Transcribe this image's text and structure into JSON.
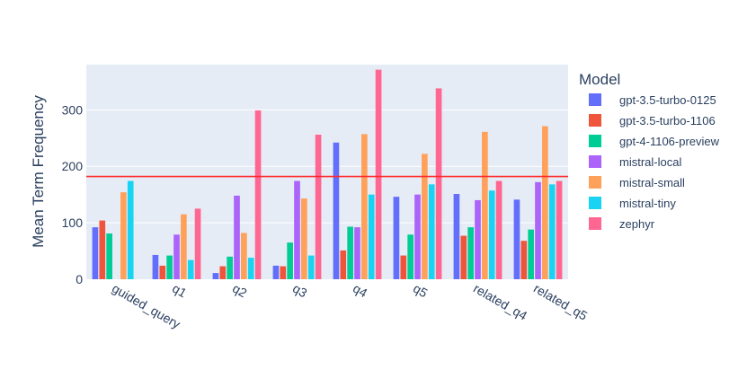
{
  "chart_data": {
    "type": "bar",
    "barmode": "group",
    "title": "",
    "xlabel": "",
    "ylabel": "Mean Term Frequency",
    "ylim": [
      0,
      380
    ],
    "y_ticks": [
      0,
      100,
      200,
      300
    ],
    "grid": true,
    "legend": {
      "title": "Model",
      "placement": "right"
    },
    "categories": [
      "guided_query",
      "q1",
      "q2",
      "q3",
      "q4",
      "q5",
      "related_q4",
      "related_q5"
    ],
    "series": [
      {
        "name": "gpt-3.5-turbo-0125",
        "color": "#636efa",
        "values": [
          92,
          43,
          11,
          24,
          242,
          146,
          151,
          141
        ]
      },
      {
        "name": "gpt-3.5-turbo-1106",
        "color": "#ef553b",
        "values": [
          104,
          24,
          23,
          23,
          51,
          42,
          77,
          68
        ]
      },
      {
        "name": "gpt-4-1106-preview",
        "color": "#00cc96",
        "values": [
          81,
          42,
          40,
          65,
          93,
          79,
          92,
          88
        ]
      },
      {
        "name": "mistral-local",
        "color": "#ab63fa",
        "values": [
          0,
          79,
          148,
          174,
          92,
          150,
          140,
          172
        ]
      },
      {
        "name": "mistral-small",
        "color": "#ffa15a",
        "values": [
          154,
          115,
          82,
          143,
          257,
          222,
          261,
          271
        ]
      },
      {
        "name": "mistral-tiny",
        "color": "#19d3f3",
        "values": [
          174,
          34,
          38,
          42,
          150,
          168,
          157,
          168
        ]
      },
      {
        "name": "zephyr",
        "color": "#ff6692",
        "values": [
          0,
          125,
          299,
          256,
          371,
          338,
          174,
          174
        ]
      }
    ],
    "reference_line": {
      "y": 182,
      "color": "#ff2a2a"
    }
  }
}
